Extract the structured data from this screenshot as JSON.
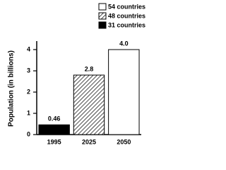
{
  "chart_data": {
    "type": "bar",
    "y_label": "Population (in billions)",
    "categories": [
      "1995",
      "2025",
      "2050"
    ],
    "values": [
      0.46,
      2.8,
      4.0
    ],
    "value_labels": [
      "0.46",
      "2.8",
      "4.0"
    ],
    "fills": [
      "black",
      "hatch",
      "white"
    ],
    "legend": [
      {
        "name": "54 countries",
        "fill": "white"
      },
      {
        "name": "48 countries",
        "fill": "hatch"
      },
      {
        "name": "31 countries",
        "fill": "black"
      }
    ],
    "legend_position": "top-right",
    "ylim": [
      0,
      4.4
    ],
    "yticks": [
      0,
      1,
      2,
      3,
      4
    ],
    "grid": false
  }
}
